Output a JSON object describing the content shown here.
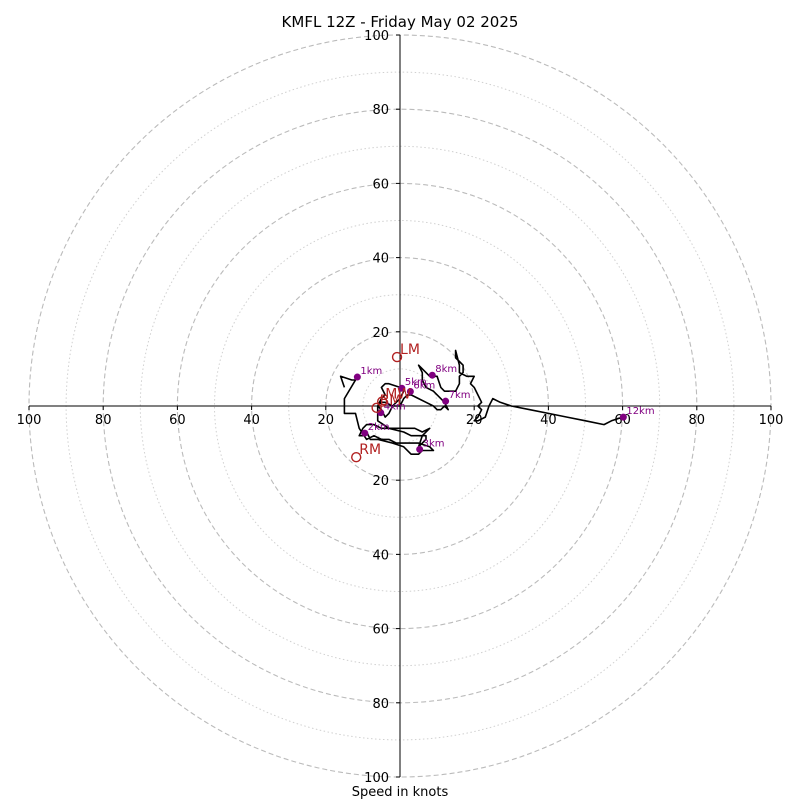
{
  "chart_data": {
    "type": "hodograph",
    "title": "KMFL 12Z - Friday May 02 2025",
    "xlabel": "Speed in knots",
    "rmax": 100,
    "ring_major": [
      20,
      40,
      60,
      80,
      100
    ],
    "ring_minor": [
      10,
      30,
      50,
      70,
      90
    ],
    "tick_labels": {
      "x_left": [
        "100",
        "80",
        "60",
        "40",
        "20"
      ],
      "x_right": [
        "20",
        "40",
        "60",
        "80",
        "100"
      ],
      "y_top": [
        "100",
        "80",
        "60",
        "40",
        "20"
      ],
      "y_bottom": [
        "20",
        "40",
        "60",
        "80",
        "100"
      ]
    },
    "tick_values": {
      "x_left": [
        -100,
        -80,
        -60,
        -40,
        -20
      ],
      "x_right": [
        20,
        40,
        60,
        80,
        100
      ],
      "y_top": [
        100,
        80,
        60,
        40,
        20
      ],
      "y_bottom": [
        -20,
        -40,
        -60,
        -80,
        -100
      ]
    },
    "line_color": "#000000",
    "marker_color": "#800080",
    "storm_color": "#b22222",
    "grid_color": "#bbbbbb",
    "trace": [
      [
        -15,
        5
      ],
      [
        -16,
        8
      ],
      [
        -13,
        7
      ],
      [
        -12,
        7
      ],
      [
        -15,
        2
      ],
      [
        -15,
        -2
      ],
      [
        -12,
        -2
      ],
      [
        -11,
        -6
      ],
      [
        -9,
        -9
      ],
      [
        -7,
        -8
      ],
      [
        -5,
        -9
      ],
      [
        -3,
        -9
      ],
      [
        -1,
        -10
      ],
      [
        2,
        -10
      ],
      [
        5,
        -10
      ],
      [
        8,
        -11
      ],
      [
        9,
        -12
      ],
      [
        6,
        -12
      ],
      [
        5,
        -13
      ],
      [
        3,
        -13
      ],
      [
        1,
        -11
      ],
      [
        -2,
        -10
      ],
      [
        -6,
        -9
      ],
      [
        -8,
        -9
      ],
      [
        -9,
        -7
      ],
      [
        -10,
        -8
      ],
      [
        -11,
        -8
      ],
      [
        -10,
        -6
      ],
      [
        -9,
        -5
      ],
      [
        -7,
        -5
      ],
      [
        -5,
        -6
      ],
      [
        -2,
        -6
      ],
      [
        2,
        -6
      ],
      [
        4,
        -6
      ],
      [
        6,
        -7
      ],
      [
        8,
        -6
      ],
      [
        6,
        -8
      ],
      [
        5,
        -11
      ],
      [
        6,
        -10
      ],
      [
        7,
        -9
      ],
      [
        7,
        -8
      ],
      [
        3,
        -8
      ],
      [
        1,
        -7
      ],
      [
        -3,
        -6
      ],
      [
        -6,
        -4
      ],
      [
        -6,
        0
      ],
      [
        -5,
        2
      ],
      [
        -4,
        3
      ],
      [
        -5,
        5
      ],
      [
        -4,
        6
      ],
      [
        -3,
        6
      ],
      [
        0,
        5
      ],
      [
        1,
        4
      ],
      [
        0,
        2
      ],
      [
        -1,
        1
      ],
      [
        -2,
        0
      ],
      [
        -3,
        -2
      ],
      [
        -4,
        -3
      ],
      [
        -5,
        -1
      ],
      [
        -6,
        0
      ],
      [
        -5,
        1
      ],
      [
        -4,
        1
      ],
      [
        -2,
        0
      ],
      [
        0,
        0
      ],
      [
        1,
        2
      ],
      [
        2,
        3
      ],
      [
        3,
        3
      ],
      [
        5,
        2
      ],
      [
        7,
        1
      ],
      [
        9,
        0
      ],
      [
        10,
        -1
      ],
      [
        11,
        -1
      ],
      [
        12,
        0
      ],
      [
        13,
        -1
      ],
      [
        12,
        1
      ],
      [
        11,
        2
      ],
      [
        9,
        4
      ],
      [
        7,
        5
      ],
      [
        6,
        7
      ],
      [
        6,
        9
      ],
      [
        5,
        11
      ],
      [
        7,
        9
      ],
      [
        8,
        8
      ],
      [
        10,
        8
      ],
      [
        11,
        5
      ],
      [
        12,
        4
      ],
      [
        15,
        4
      ],
      [
        16,
        6
      ],
      [
        16,
        8
      ],
      [
        17,
        9
      ],
      [
        17,
        11
      ],
      [
        16,
        12
      ],
      [
        15,
        13
      ],
      [
        15,
        15
      ],
      [
        16,
        11
      ],
      [
        16,
        9
      ],
      [
        18,
        8
      ],
      [
        20,
        8
      ],
      [
        19,
        6
      ],
      [
        20,
        5
      ],
      [
        21,
        3
      ],
      [
        22,
        1
      ],
      [
        21,
        0
      ],
      [
        22,
        -1
      ],
      [
        21,
        -3
      ],
      [
        20,
        -4
      ],
      [
        21,
        -4
      ],
      [
        23,
        -3
      ],
      [
        24,
        0
      ],
      [
        25,
        2
      ],
      [
        27,
        1
      ],
      [
        30,
        0
      ],
      [
        35,
        -1
      ],
      [
        40,
        -2
      ],
      [
        45,
        -3
      ],
      [
        50,
        -4
      ],
      [
        55,
        -5
      ],
      [
        57,
        -4
      ],
      [
        60,
        -3
      ]
    ],
    "heights": [
      {
        "label": "1km",
        "u": -11.5,
        "v": 7.8
      },
      {
        "label": "2km",
        "u": -9.5,
        "v": -7.3
      },
      {
        "label": "3km",
        "u": 5.3,
        "v": -11.7
      },
      {
        "label": "4km",
        "u": -5.2,
        "v": -1.8
      },
      {
        "label": "5km",
        "u": 0.5,
        "v": 4.8
      },
      {
        "label": "6km",
        "u": 2.8,
        "v": 3.9
      },
      {
        "label": "7km",
        "u": 12.3,
        "v": 1.3
      },
      {
        "label": "8km",
        "u": 8.7,
        "v": 8.3
      },
      {
        "label": "12km",
        "u": 60.2,
        "v": -3.0
      }
    ],
    "storm_motion": [
      {
        "label": "LM",
        "u": -0.8,
        "v": 13.2
      },
      {
        "label": "MW",
        "u": -4.8,
        "v": 1.2
      },
      {
        "label": "RM",
        "u": -11.8,
        "v": -13.8
      },
      {
        "label": "BM",
        "u": -6.3,
        "v": -0.5
      }
    ]
  }
}
